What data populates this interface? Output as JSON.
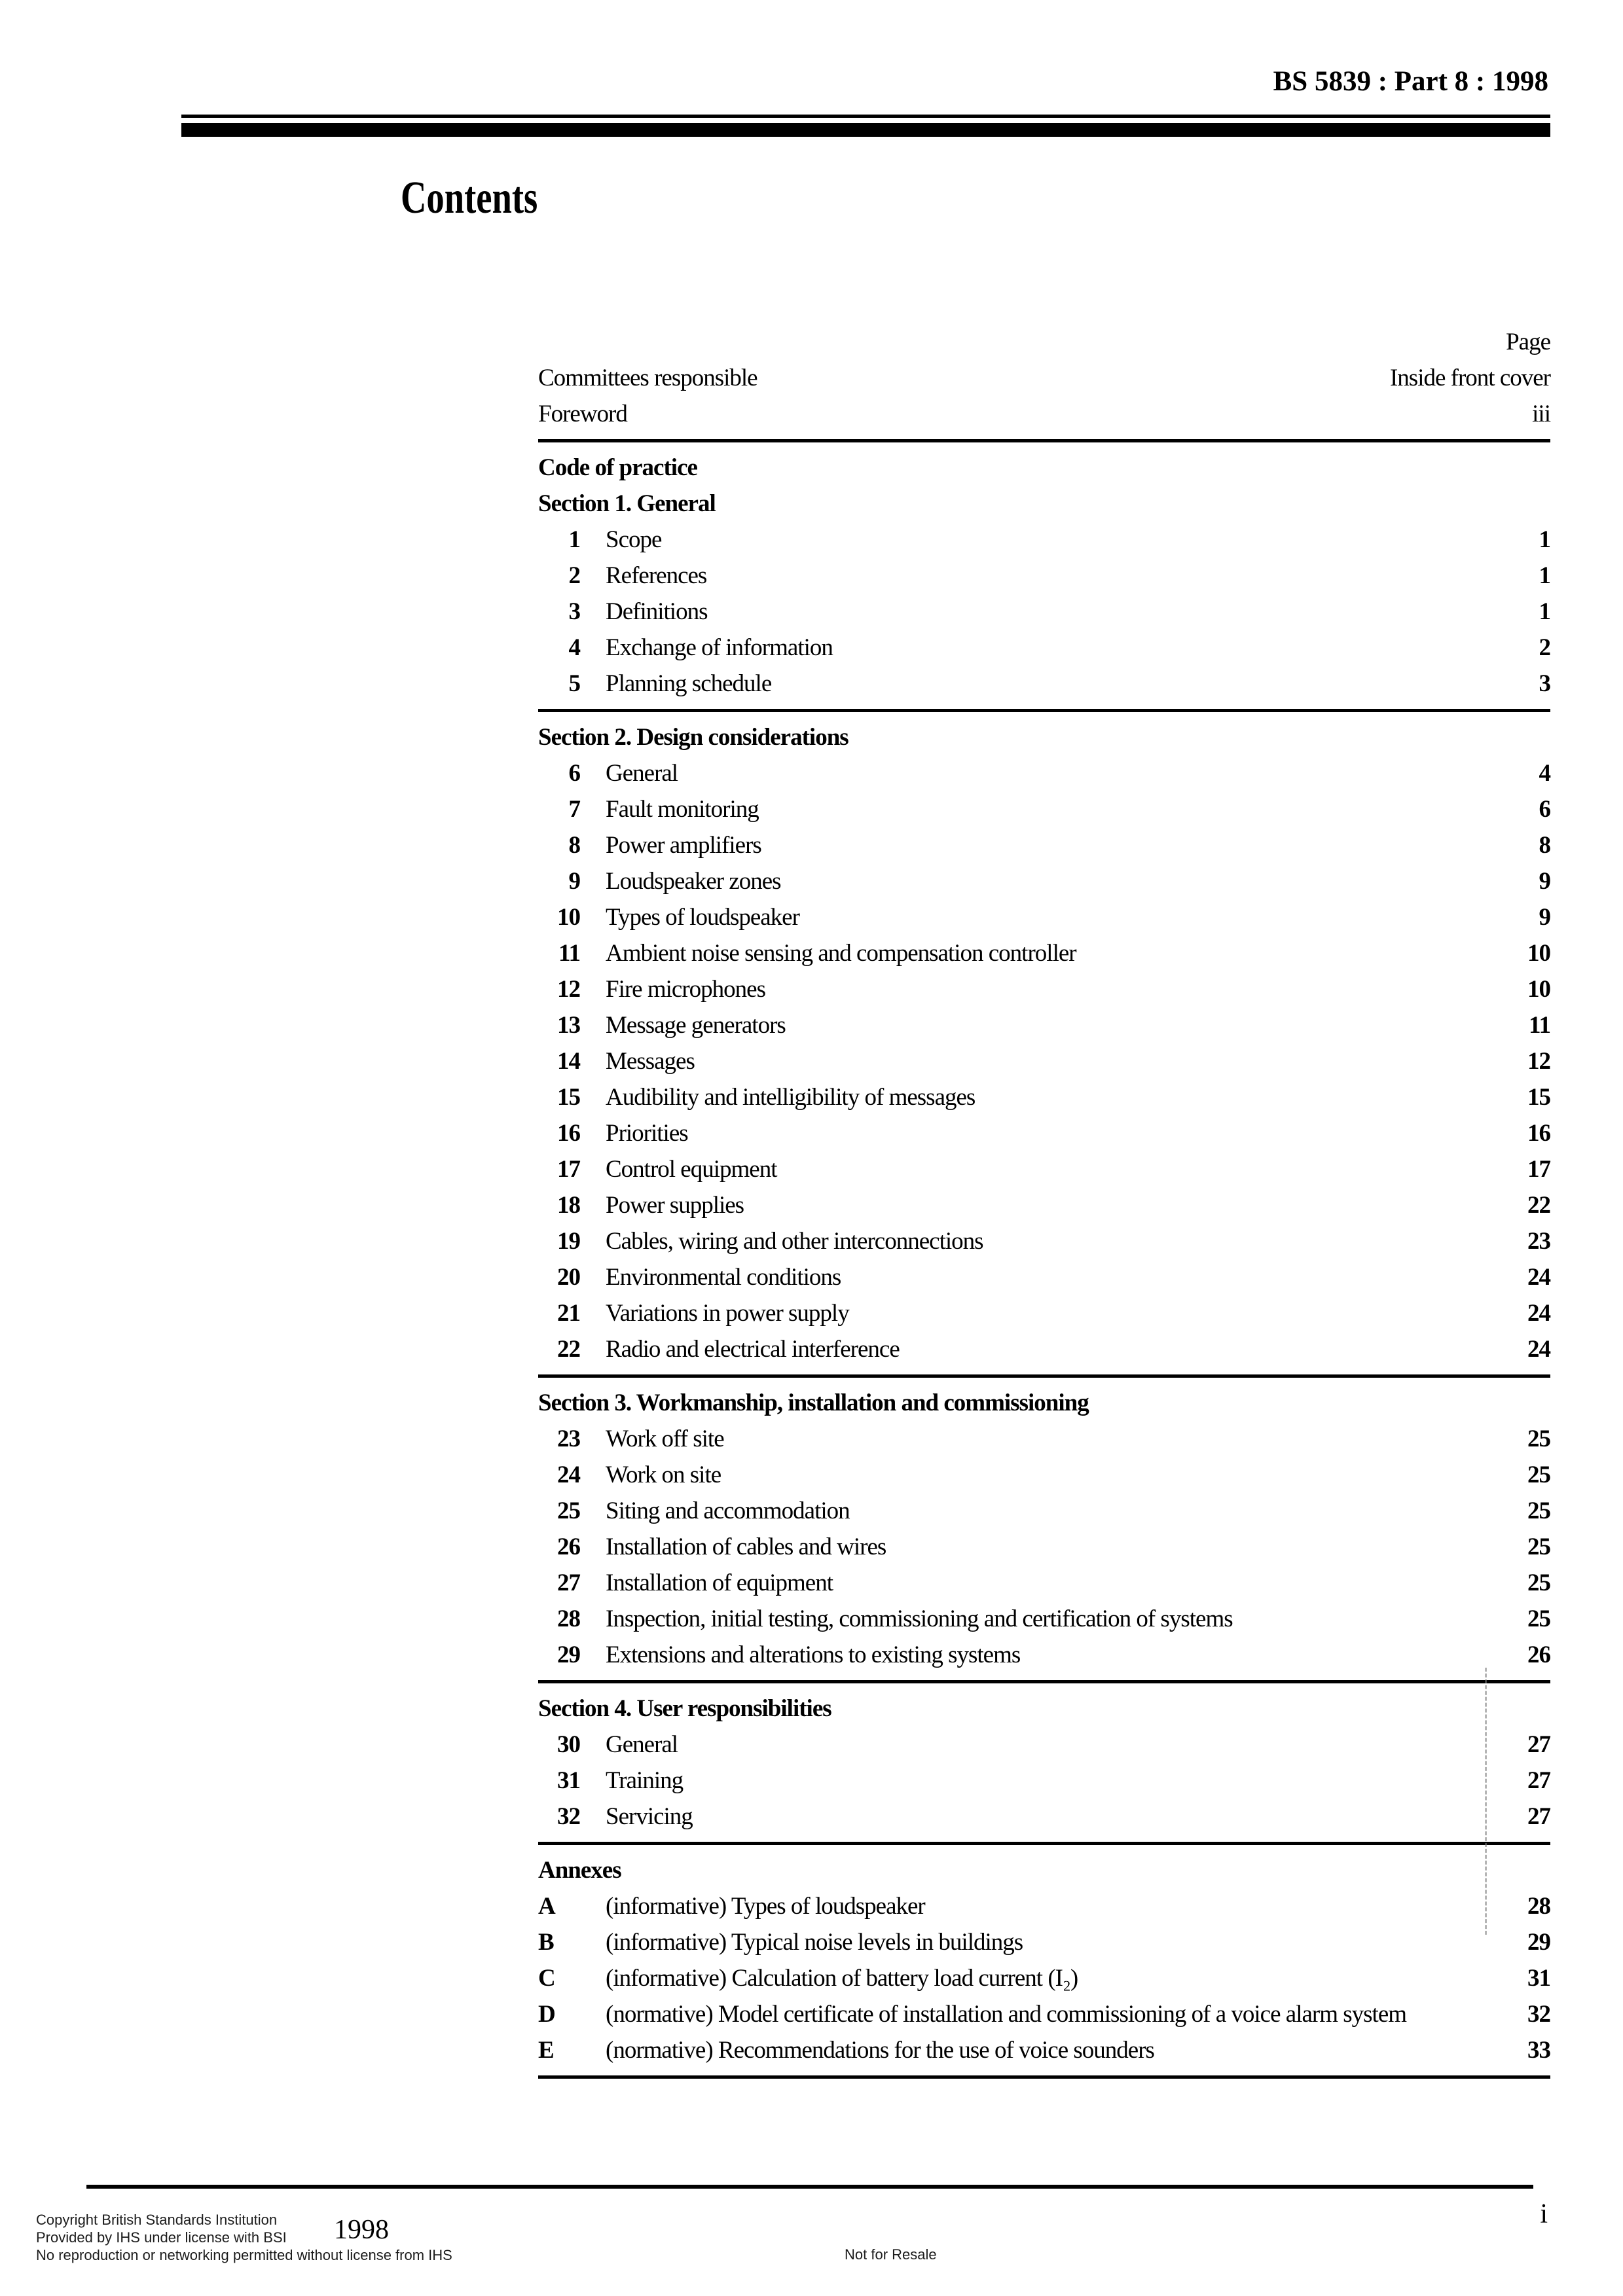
{
  "header": {
    "doc_ref": "BS 5839 : Part 8 : 1998"
  },
  "title": "Contents",
  "page_column_label": "Page",
  "front_matter": [
    {
      "label": "Committees responsible",
      "page": "Inside front cover"
    },
    {
      "label": "Foreword",
      "page": "iii"
    }
  ],
  "code_of_practice_heading": "Code of practice",
  "sections": [
    {
      "heading": "Section 1. General",
      "items": [
        {
          "num": "1",
          "label": "Scope",
          "page": "1"
        },
        {
          "num": "2",
          "label": "References",
          "page": "1"
        },
        {
          "num": "3",
          "label": "Definitions",
          "page": "1"
        },
        {
          "num": "4",
          "label": "Exchange of information",
          "page": "2"
        },
        {
          "num": "5",
          "label": "Planning schedule",
          "page": "3"
        }
      ]
    },
    {
      "heading": "Section 2. Design considerations",
      "items": [
        {
          "num": "6",
          "label": "General",
          "page": "4"
        },
        {
          "num": "7",
          "label": "Fault monitoring",
          "page": "6"
        },
        {
          "num": "8",
          "label": "Power amplifiers",
          "page": "8"
        },
        {
          "num": "9",
          "label": "Loudspeaker zones",
          "page": "9"
        },
        {
          "num": "10",
          "label": "Types of loudspeaker",
          "page": "9"
        },
        {
          "num": "11",
          "label": "Ambient noise sensing and compensation controller",
          "page": "10"
        },
        {
          "num": "12",
          "label": "Fire microphones",
          "page": "10"
        },
        {
          "num": "13",
          "label": "Message generators",
          "page": "11"
        },
        {
          "num": "14",
          "label": "Messages",
          "page": "12"
        },
        {
          "num": "15",
          "label": "Audibility and intelligibility of messages",
          "page": "15"
        },
        {
          "num": "16",
          "label": "Priorities",
          "page": "16"
        },
        {
          "num": "17",
          "label": "Control equipment",
          "page": "17"
        },
        {
          "num": "18",
          "label": "Power supplies",
          "page": "22"
        },
        {
          "num": "19",
          "label": "Cables, wiring and other interconnections",
          "page": "23"
        },
        {
          "num": "20",
          "label": "Environmental conditions",
          "page": "24"
        },
        {
          "num": "21",
          "label": "Variations in power supply",
          "page": "24"
        },
        {
          "num": "22",
          "label": "Radio and electrical interference",
          "page": "24"
        }
      ]
    },
    {
      "heading": "Section 3. Workmanship, installation and commissioning",
      "items": [
        {
          "num": "23",
          "label": "Work off site",
          "page": "25"
        },
        {
          "num": "24",
          "label": "Work on site",
          "page": "25"
        },
        {
          "num": "25",
          "label": "Siting and accommodation",
          "page": "25"
        },
        {
          "num": "26",
          "label": "Installation of cables and wires",
          "page": "25"
        },
        {
          "num": "27",
          "label": "Installation of equipment",
          "page": "25"
        },
        {
          "num": "28",
          "label": "Inspection, initial testing, commissioning and certification of systems",
          "page": "25"
        },
        {
          "num": "29",
          "label": "Extensions and alterations to existing systems",
          "page": "26"
        }
      ]
    },
    {
      "heading": "Section 4. User responsibilities",
      "items": [
        {
          "num": "30",
          "label": "General",
          "page": "27"
        },
        {
          "num": "31",
          "label": "Training",
          "page": "27"
        },
        {
          "num": "32",
          "label": "Servicing",
          "page": "27"
        }
      ]
    }
  ],
  "annexes": {
    "heading": "Annexes",
    "items": [
      {
        "num": "A",
        "label": "(informative) Types of loudspeaker",
        "page": "28"
      },
      {
        "num": "B",
        "label": "(informative) Typical noise levels in buildings",
        "page": "29"
      },
      {
        "num": "C",
        "label": "(informative) Calculation of battery load current (I₂)",
        "page": "31"
      },
      {
        "num": "D",
        "label": "(normative) Model certificate of installation and commissioning of a voice alarm system",
        "page": "32"
      },
      {
        "num": "E",
        "label": "(normative) Recommendations for the use of voice sounders",
        "page": "33"
      }
    ]
  },
  "footer": {
    "line1": "Copyright British Standards Institution",
    "line2": "Provided by IHS under license with BSI",
    "year": "1998",
    "line3": "No reproduction or networking permitted without license from IHS",
    "resale_notice": "Not for Resale",
    "page_number": "i"
  }
}
